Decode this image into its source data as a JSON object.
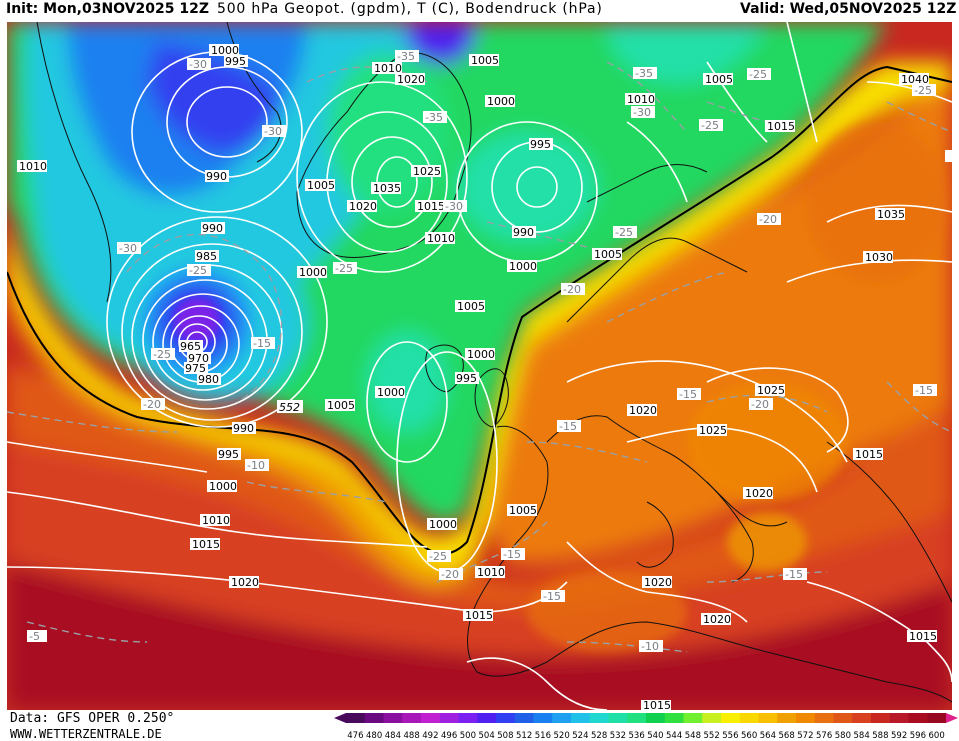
{
  "header": {
    "init": "Init: Mon,03NOV2025 12Z",
    "title": "500 hPa Geopot. (gpdm), T (C), Bodendruck (hPa)",
    "valid": "Valid: Wed,05NOV2025 12Z"
  },
  "footer": {
    "data_source": "Data: GFS OPER 0.250°",
    "website": "WWW.WETTERZENTRALE.DE"
  },
  "legend": {
    "values": [
      "476",
      "480",
      "484",
      "488",
      "492",
      "496",
      "500",
      "504",
      "508",
      "512",
      "516",
      "520",
      "524",
      "528",
      "532",
      "536",
      "540",
      "544",
      "548",
      "552",
      "556",
      "560",
      "564",
      "568",
      "572",
      "576",
      "580",
      "584",
      "588",
      "592",
      "596",
      "600"
    ],
    "colors": [
      "#4a0a5c",
      "#6a0a80",
      "#8a10a0",
      "#a818b8",
      "#c020d0",
      "#a020e0",
      "#7a20f0",
      "#5020f0",
      "#3040f0",
      "#2060e8",
      "#1a80f0",
      "#20a0f0",
      "#20c0e8",
      "#20d8d0",
      "#20e0a8",
      "#20e080",
      "#10d050",
      "#30e040",
      "#70f030",
      "#c8f020",
      "#f8f000",
      "#f8d800",
      "#f8c000",
      "#f0a000",
      "#f08800",
      "#e87010",
      "#e05818",
      "#d84020",
      "#c82820",
      "#b81828",
      "#a80c20",
      "#980820"
    ]
  },
  "map": {
    "colors": {
      "ocean_south": "#a80c20",
      "mid_south": "#d84020",
      "orange": "#ec7a10",
      "yellow": "#f8e000",
      "green": "#20d860",
      "cyan": "#20c8e0",
      "blue": "#2060e8",
      "violet": "#4a10c0"
    },
    "pressure_labels": [
      "1000",
      "995",
      "1010",
      "1015",
      "1020",
      "1005",
      "1025",
      "1035",
      "1030",
      "1040",
      "990",
      "985",
      "965",
      "970",
      "975",
      "980"
    ],
    "temperature_labels": [
      "-30",
      "-35",
      "-25",
      "-20",
      "-15",
      "-10",
      "-5"
    ],
    "height_label": "552"
  }
}
